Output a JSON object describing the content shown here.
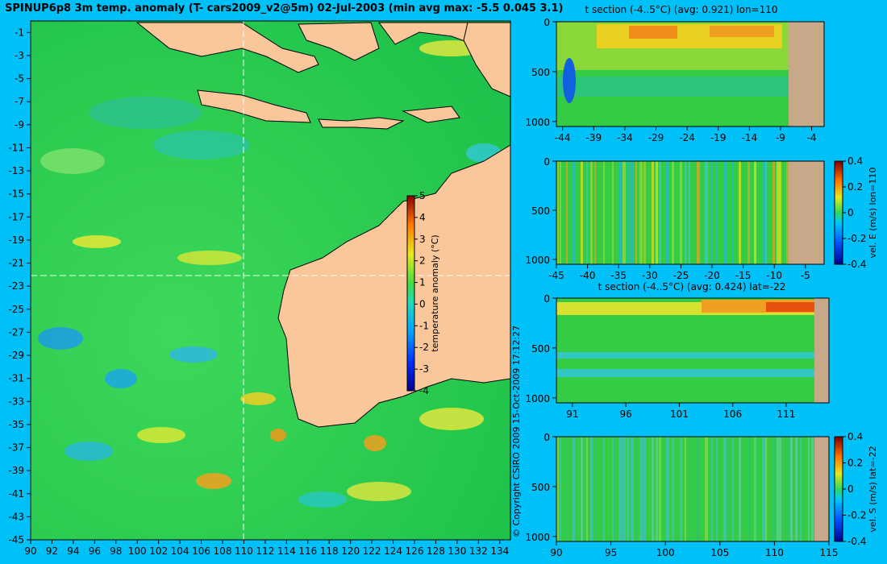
{
  "title": "SPINUP6p8 3m temp. anomaly (T- cars2009_v2@5m) 02-Jul-2003 (min avg max: -5.5 0.045 3.1)",
  "copyright": "© Copyright CSIRO 2009  15-Oct-2009 17:12:27",
  "colors": {
    "background": "#00c0f8",
    "land": "#f9c79a",
    "section_land": "#c7a98a",
    "ocean_base": "#2fd24a",
    "warm": "#f1e62a",
    "cool": "#20b9e8"
  },
  "map": {
    "x_ticks": [
      "90",
      "92",
      "94",
      "96",
      "98",
      "100",
      "102",
      "104",
      "106",
      "108",
      "110",
      "112",
      "114",
      "116",
      "118",
      "120",
      "122",
      "124",
      "126",
      "128",
      "130",
      "132",
      "134"
    ],
    "y_ticks": [
      "-1",
      "-3",
      "-5",
      "-7",
      "-9",
      "-11",
      "-13",
      "-15",
      "-17",
      "-19",
      "-21",
      "-23",
      "-25",
      "-27",
      "-29",
      "-31",
      "-33",
      "-35",
      "-37",
      "-39",
      "-41",
      "-43",
      "-45"
    ],
    "colorbar_label": "temperature anomaly (°C)",
    "colorbar_ticks": [
      "5",
      "4",
      "3",
      "2",
      "1",
      "0",
      "-1",
      "-2",
      "-3",
      "-4"
    ]
  },
  "panels": [
    {
      "id": "t-section-lon",
      "title": "t section (-4..5°C) (avg: 0.921) lon=110",
      "x_ticks": [
        "-44",
        "-39",
        "-34",
        "-29",
        "-24",
        "-19",
        "-14",
        "-9",
        "-4"
      ],
      "y_ticks": [
        "0",
        "500",
        "1000"
      ]
    },
    {
      "id": "vel-e-lon",
      "title": "",
      "x_ticks": [
        "-45",
        "-40",
        "-35",
        "-30",
        "-25",
        "-20",
        "-15",
        "-10",
        "-5"
      ],
      "y_ticks": [
        "0",
        "500",
        "1000"
      ],
      "colorbar_label": "vel. E (m/s) lon=110",
      "colorbar_ticks": [
        "0.4",
        "0.2",
        "0",
        "-0.2",
        "-0.4"
      ]
    },
    {
      "id": "t-section-lat",
      "title": "t section (-4..5°C) (avg: 0.424) lat=-22",
      "x_ticks": [
        "91",
        "96",
        "101",
        "106",
        "111"
      ],
      "y_ticks": [
        "0",
        "500",
        "1000"
      ]
    },
    {
      "id": "vel-s-lat",
      "title": "",
      "x_ticks": [
        "90",
        "95",
        "100",
        "105",
        "110",
        "115"
      ],
      "y_ticks": [
        "0",
        "500",
        "1000"
      ],
      "colorbar_label": "vel. S (m/s) lat=-22",
      "colorbar_ticks": [
        "0.4",
        "0.2",
        "0",
        "-0.2",
        "-0.4"
      ]
    }
  ],
  "chart_data": [
    {
      "type": "heatmap",
      "title": "SPINUP6p8 3m temp. anomaly (T- cars2009_v2@5m) 02-Jul-2003 (min avg max: -5.5 0.045 3.1)",
      "xlim": [
        90,
        135
      ],
      "ylim": [
        -45,
        0
      ],
      "colorbar": {
        "label": "temperature anomaly (°C)",
        "range": [
          -4,
          5
        ]
      },
      "guides": {
        "lon": 110,
        "lat": -22
      },
      "stats": {
        "min": -5.5,
        "avg": 0.045,
        "max": 3.1
      }
    },
    {
      "type": "heatmap",
      "title": "t section (-4..5°C) (avg: 0.921) lon=110",
      "xlim": [
        -45,
        -2
      ],
      "ylim": [
        1050,
        0
      ],
      "colorbar": {
        "range": [
          -4,
          5
        ]
      }
    },
    {
      "type": "heatmap",
      "xlim": [
        -45,
        -2
      ],
      "ylim": [
        1050,
        0
      ],
      "colorbar": {
        "label": "vel. E (m/s) lon=110",
        "range": [
          -0.4,
          0.4
        ]
      }
    },
    {
      "type": "heatmap",
      "title": "t section (-4..5°C) (avg: 0.424) lat=-22",
      "xlim": [
        89.5,
        115
      ],
      "ylim": [
        1050,
        0
      ],
      "colorbar": {
        "range": [
          -4,
          5
        ]
      }
    },
    {
      "type": "heatmap",
      "xlim": [
        90,
        115
      ],
      "ylim": [
        1050,
        0
      ],
      "colorbar": {
        "label": "vel. S (m/s) lat=-22",
        "range": [
          -0.4,
          0.4
        ]
      }
    }
  ]
}
